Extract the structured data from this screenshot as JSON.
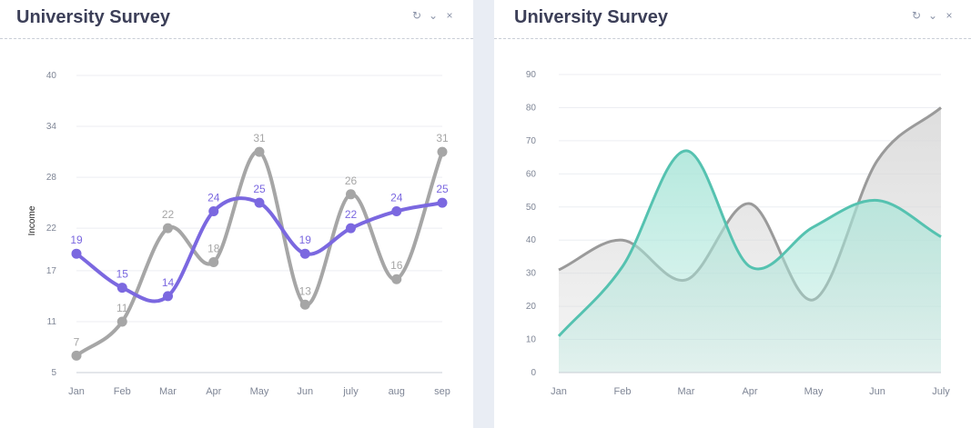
{
  "panels": [
    {
      "title": "University Survey",
      "tools": {
        "refresh_icon": "↻",
        "collapse_icon": "⌄",
        "close_icon": "×"
      },
      "chart_data": {
        "type": "line",
        "categories": [
          "Jan",
          "Feb",
          "Mar",
          "Apr",
          "May",
          "Jun",
          "july",
          "aug",
          "sep"
        ],
        "ylabel": "Income",
        "yticks": [
          5,
          11,
          17,
          22,
          28,
          34,
          40
        ],
        "ylim": [
          5,
          40
        ],
        "grid": true,
        "series": [
          {
            "values": [
              7,
              11,
              22,
              18,
              31,
              13,
              26,
              16,
              31
            ],
            "color": "#a6a6a6",
            "labels": true
          },
          {
            "values": [
              19,
              15,
              14,
              24,
              25,
              19,
              22,
              24,
              25
            ],
            "color": "#7b68e0",
            "labels": true
          }
        ]
      }
    },
    {
      "title": "University Survey",
      "tools": {
        "refresh_icon": "↻",
        "collapse_icon": "⌄",
        "close_icon": "×"
      },
      "chart_data": {
        "type": "area",
        "categories": [
          "Jan",
          "Feb",
          "Mar",
          "Apr",
          "May",
          "Jun",
          "July"
        ],
        "yticks": [
          0,
          10,
          20,
          30,
          40,
          50,
          60,
          70,
          80,
          90
        ],
        "ylim": [
          0,
          90
        ],
        "grid": true,
        "series": [
          {
            "values": [
              31,
              40,
              28,
              51,
              22,
              64,
              80
            ],
            "color": "#9a9a9a",
            "fill": "#d8d8d8"
          },
          {
            "values": [
              11,
              32,
              67,
              32,
              44,
              52,
              41
            ],
            "color": "#55c2b0",
            "fill": "#a9e5d8"
          }
        ]
      }
    }
  ]
}
